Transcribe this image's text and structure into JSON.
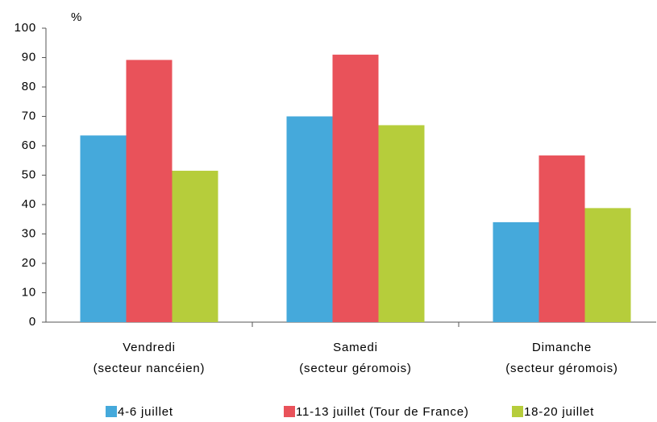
{
  "chart_data": {
    "type": "bar",
    "y_unit": "%",
    "categories": [
      [
        "Vendredi",
        "(secteur nancéien)"
      ],
      [
        "Samedi",
        "(secteur géromois)"
      ],
      [
        "Dimanche",
        "(secteur géromois)"
      ]
    ],
    "series": [
      {
        "name": "4-6 juillet",
        "color": "#45a9db",
        "values": [
          63.5,
          70,
          34
        ]
      },
      {
        "name": "11-13 juillet (Tour de France)",
        "color": "#e9525a",
        "values": [
          89.2,
          91,
          56.7
        ]
      },
      {
        "name": "18-20 juillet",
        "color": "#b6cd3b",
        "values": [
          51.5,
          67,
          38.8
        ]
      }
    ],
    "ylim": [
      0,
      100
    ],
    "yticks": [
      0,
      10,
      20,
      30,
      40,
      50,
      60,
      70,
      80,
      90,
      100
    ],
    "grid": false,
    "legend": "bottom"
  }
}
